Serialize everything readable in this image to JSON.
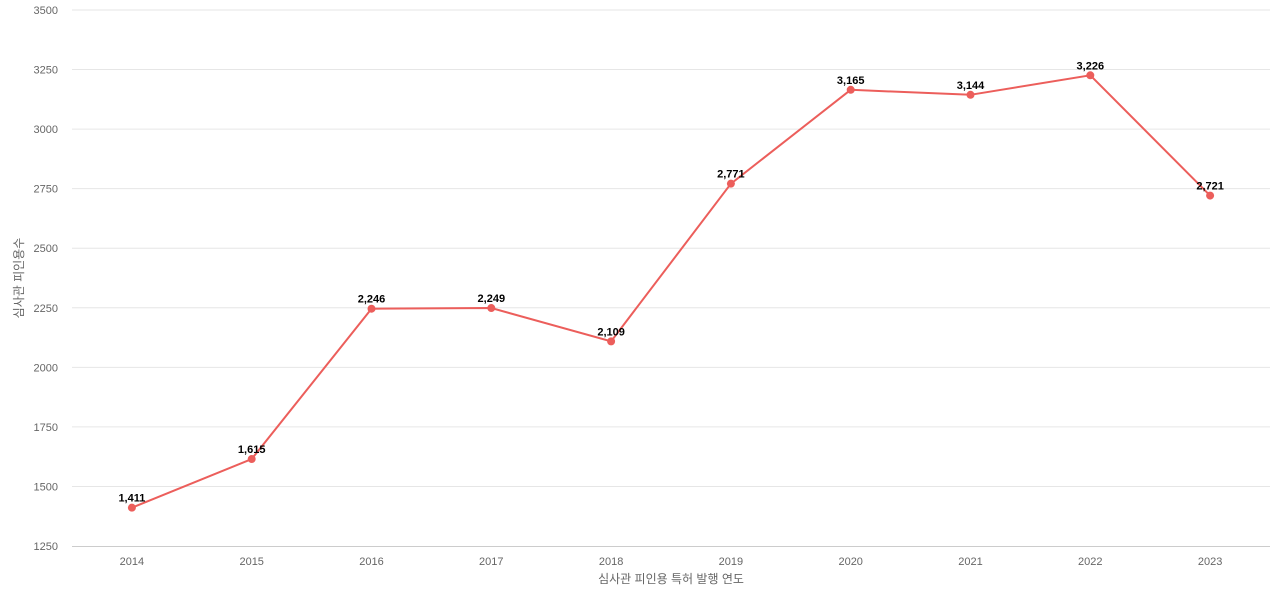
{
  "chart_data": {
    "type": "line",
    "categories": [
      "2014",
      "2015",
      "2016",
      "2017",
      "2018",
      "2019",
      "2020",
      "2021",
      "2022",
      "2023"
    ],
    "values": [
      1411,
      1615,
      2246,
      2249,
      2109,
      2771,
      3165,
      3144,
      3226,
      2721
    ],
    "data_labels": [
      "1,411",
      "1,615",
      "2,246",
      "2,249",
      "2,109",
      "2,771",
      "3,165",
      "3,144",
      "3,226",
      "2,721"
    ],
    "xlabel": "심사관 피인용 특허 발행 연도",
    "ylabel": "심사관 피인용수",
    "ylim": [
      1250,
      3500
    ],
    "yticks": [
      "1250",
      "1500",
      "1750",
      "2000",
      "2250",
      "2500",
      "2750",
      "3000",
      "3250",
      "3500"
    ],
    "grid": true,
    "line_color": "#ec5e5b",
    "marker_color": "#ec5e5b"
  }
}
